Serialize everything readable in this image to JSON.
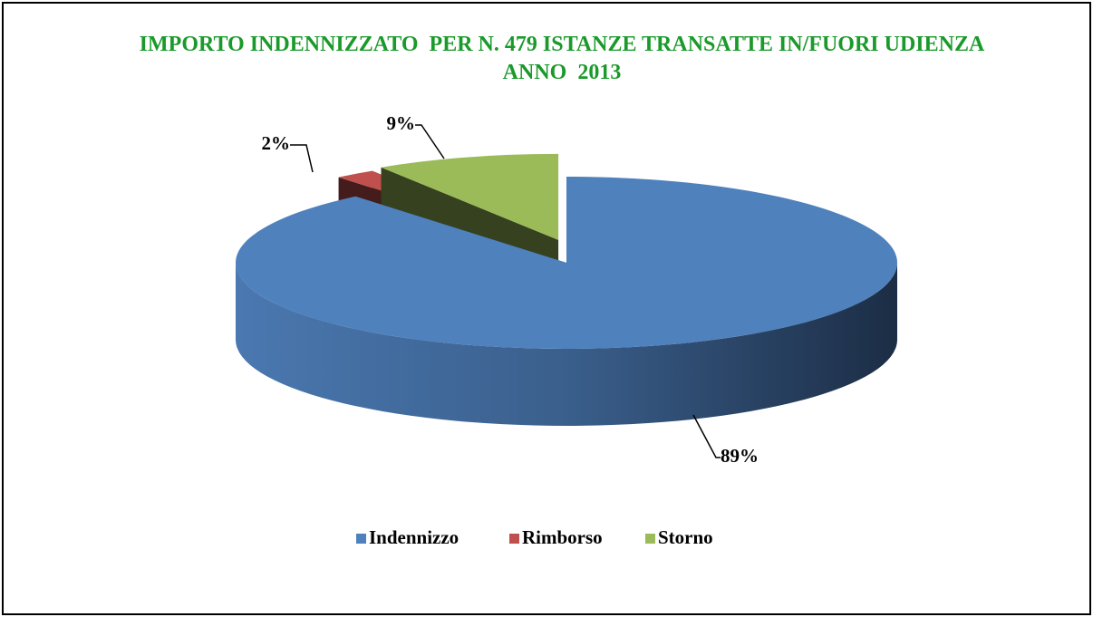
{
  "chart_data": {
    "type": "pie",
    "title": "IMPORTO INDENNIZZATO  PER N. 479 ISTANZE TRANSATTE IN/FUORI UDIENZA ANNO  2013",
    "categories": [
      "Indennizzo",
      "Rimborso",
      "Storno"
    ],
    "values": [
      89,
      2,
      9
    ],
    "value_labels": [
      "89%",
      "2%",
      "9%"
    ],
    "colors": [
      "#4f81bd",
      "#c0504d",
      "#9bbb59"
    ],
    "legend": "bottom"
  }
}
